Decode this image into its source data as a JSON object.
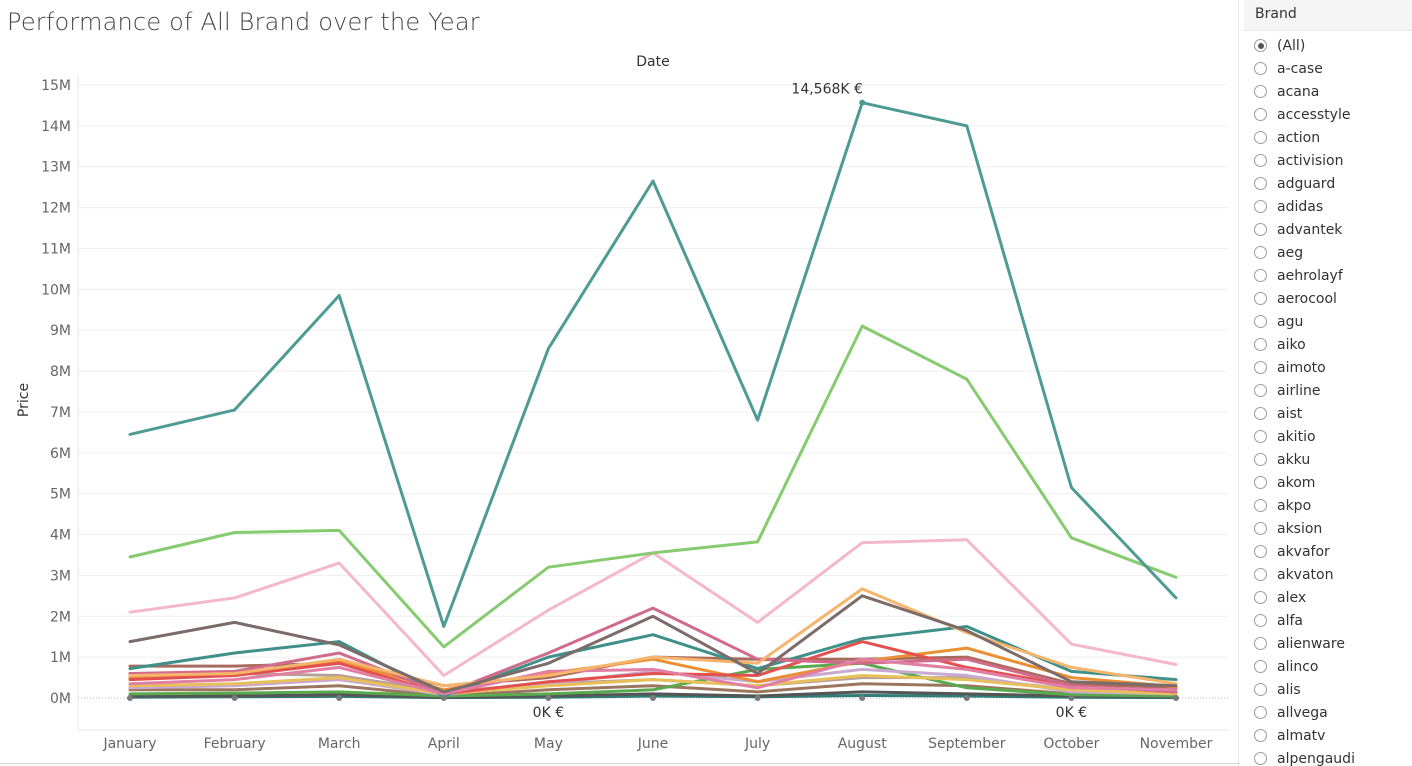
{
  "title": "Performance of All Brand over the Year",
  "filter": {
    "header": "Brand",
    "options": [
      "(All)",
      "a-case",
      "acana",
      "accesstyle",
      "action",
      "activision",
      "adguard",
      "adidas",
      "advantek",
      "aeg",
      "aehrolayf",
      "aerocool",
      "agu",
      "aiko",
      "aimoto",
      "airline",
      "aist",
      "akitio",
      "akku",
      "akom",
      "akpo",
      "aksion",
      "akvafor",
      "akvaton",
      "alex",
      "alfa",
      "alienware",
      "alinco",
      "alis",
      "allvega",
      "almatv",
      "alpengaudi"
    ],
    "selected": "(All)"
  },
  "chart_data": {
    "type": "line",
    "title": "Performance of All Brand over the Year",
    "xlabel": "Date",
    "ylabel": "Price",
    "categories": [
      "January",
      "February",
      "March",
      "April",
      "May",
      "June",
      "July",
      "August",
      "September",
      "October",
      "November"
    ],
    "y_ticks": [
      "0M",
      "1M",
      "2M",
      "3M",
      "4M",
      "5M",
      "6M",
      "7M",
      "8M",
      "9M",
      "10M",
      "11M",
      "12M",
      "13M",
      "14M",
      "15M"
    ],
    "ylim": [
      0,
      15
    ],
    "y_unit": "M",
    "grid": true,
    "annotations": [
      {
        "text": "14,568K €",
        "category": "August",
        "value": 14.568
      },
      {
        "text": "0K €",
        "category": "May",
        "value": 0
      },
      {
        "text": "0K €",
        "category": "October",
        "value": 0
      }
    ],
    "series": [
      {
        "color": "#4e9a94",
        "values": [
          6.45,
          7.05,
          9.85,
          1.75,
          8.55,
          12.65,
          6.8,
          14.568,
          14.0,
          5.15,
          2.45
        ]
      },
      {
        "color": "#86cb6f",
        "values": [
          3.45,
          4.05,
          4.1,
          1.25,
          3.2,
          3.55,
          3.82,
          9.1,
          7.8,
          3.92,
          2.95
        ]
      },
      {
        "color": "#f4b8ca",
        "values": [
          2.1,
          2.45,
          3.3,
          0.55,
          2.15,
          3.55,
          1.85,
          3.8,
          3.87,
          1.32,
          0.82
        ]
      },
      {
        "color": "#7b6b69",
        "values": [
          1.38,
          1.85,
          1.3,
          0.15,
          0.85,
          2.0,
          0.6,
          2.5,
          1.65,
          0.4,
          0.3
        ]
      },
      {
        "color": "#f6b46d",
        "values": [
          0.55,
          0.6,
          0.95,
          0.3,
          0.55,
          1.0,
          0.85,
          2.67,
          1.6,
          0.75,
          0.35
        ]
      },
      {
        "color": "#e07fa3",
        "values": [
          0.35,
          0.45,
          0.75,
          0.1,
          0.65,
          0.7,
          0.25,
          0.95,
          0.7,
          0.25,
          0.2
        ]
      },
      {
        "color": "#d16b8b",
        "values": [
          0.6,
          0.65,
          1.1,
          0.1,
          1.1,
          2.2,
          0.95,
          0.85,
          0.95,
          0.3,
          0.15
        ]
      },
      {
        "color": "#3f8f8a",
        "values": [
          0.72,
          1.1,
          1.38,
          0.05,
          1.0,
          1.55,
          0.72,
          1.45,
          1.75,
          0.65,
          0.45
        ]
      },
      {
        "color": "#e2504f",
        "values": [
          0.45,
          0.55,
          0.85,
          0.1,
          0.4,
          0.6,
          0.55,
          1.38,
          0.75,
          0.3,
          0.15
        ]
      },
      {
        "color": "#ec8e32",
        "values": [
          0.5,
          0.55,
          0.9,
          0.2,
          0.6,
          0.95,
          0.4,
          0.9,
          1.22,
          0.5,
          0.28
        ]
      },
      {
        "color": "#a86a5d",
        "values": [
          0.78,
          0.78,
          0.85,
          0.3,
          0.5,
          1.0,
          0.95,
          0.95,
          1.0,
          0.35,
          0.25
        ]
      },
      {
        "color": "#e8c05a",
        "values": [
          0.3,
          0.35,
          0.5,
          0.1,
          0.3,
          0.45,
          0.3,
          0.55,
          0.45,
          0.2,
          0.1
        ]
      },
      {
        "color": "#c9a9cf",
        "values": [
          0.25,
          0.3,
          0.45,
          0.08,
          0.35,
          0.65,
          0.4,
          0.7,
          0.55,
          0.15,
          0.1
        ]
      },
      {
        "color": "#59a94e",
        "values": [
          0.1,
          0.12,
          0.15,
          0.05,
          0.1,
          0.2,
          0.7,
          0.85,
          0.25,
          0.08,
          0.05
        ]
      },
      {
        "color": "#9c755f",
        "values": [
          0.2,
          0.2,
          0.3,
          0.05,
          0.2,
          0.3,
          0.15,
          0.35,
          0.3,
          0.1,
          0.05
        ]
      },
      {
        "color": "#b7a099",
        "values": [
          0.6,
          0.6,
          0.55,
          0.15,
          0.35,
          0.45,
          0.3,
          0.5,
          0.5,
          0.2,
          0.1
        ]
      },
      {
        "color": "#555555",
        "values": [
          0.05,
          0.05,
          0.08,
          0.02,
          0.05,
          0.1,
          0.05,
          0.15,
          0.1,
          0.05,
          0.03
        ]
      },
      {
        "color": "#2f7d77",
        "values": [
          0.02,
          0.03,
          0.04,
          0.01,
          0.02,
          0.05,
          0.03,
          0.06,
          0.05,
          0.02,
          0.01
        ]
      }
    ]
  }
}
